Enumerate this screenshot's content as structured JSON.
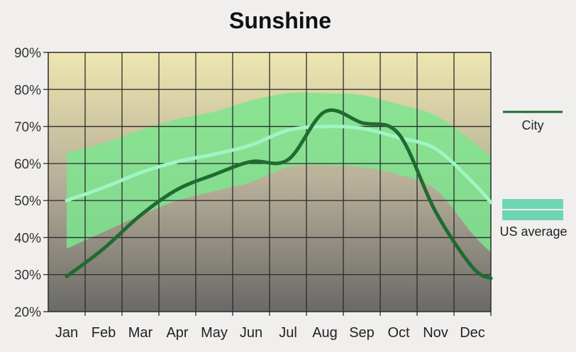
{
  "chart_data": {
    "type": "line",
    "title": "Sunshine",
    "categories": [
      "Jan",
      "Feb",
      "Mar",
      "Apr",
      "May",
      "Jun",
      "Jul",
      "Aug",
      "Sep",
      "Oct",
      "Nov",
      "Dec"
    ],
    "y_ticks": [
      "20%",
      "30%",
      "40%",
      "50%",
      "60%",
      "70%",
      "80%",
      "90%"
    ],
    "ylim": [
      20,
      90
    ],
    "grid": true,
    "legend_position": "right",
    "series": [
      {
        "name": "City",
        "color": "#1f6b32",
        "x": [
          0,
          1,
          2,
          3,
          4,
          5,
          6,
          7,
          8,
          9,
          10,
          11,
          11.5
        ],
        "values": [
          29.5,
          37,
          46,
          53,
          57,
          60.5,
          61,
          74,
          71,
          68,
          47,
          32,
          29
        ]
      },
      {
        "name": "US average",
        "color": "#9ef5c4",
        "x": [
          0,
          1,
          2,
          3,
          4,
          5,
          6,
          7,
          8,
          9,
          10,
          11,
          11.5
        ],
        "values": [
          50,
          53.5,
          57.5,
          60.5,
          62.5,
          65,
          69,
          70,
          69.5,
          67,
          64,
          55,
          49.5
        ],
        "band_color": "#7ce58e",
        "band_upper": [
          63,
          65.5,
          69,
          72,
          74,
          77,
          79,
          79,
          78.5,
          76,
          73,
          66,
          62
        ],
        "band_lower": [
          37,
          41.5,
          46,
          50,
          52.5,
          55,
          59,
          59.5,
          59,
          57,
          53,
          41,
          36
        ]
      }
    ],
    "legend": {
      "city_label": "City",
      "us_label": "US average",
      "city_color": "#1f6b32",
      "us_color": "#6fd6b4"
    }
  }
}
